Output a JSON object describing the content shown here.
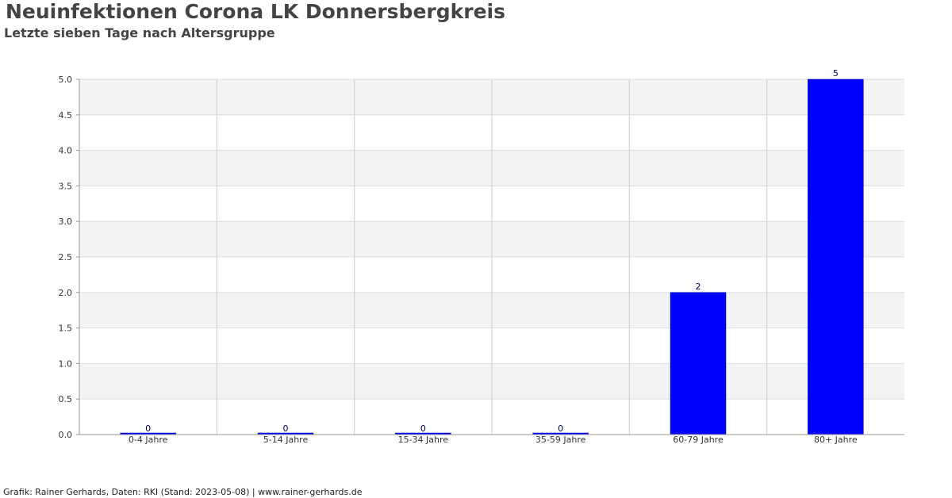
{
  "header": {
    "title": "Neuinfektionen Corona LK Donnersbergkreis",
    "subtitle": "Letzte sieben Tage nach Altersgruppe"
  },
  "footer": {
    "credit": "Grafik: Rainer Gerhards, Daten: RKI (Stand: 2023-05-08) | www.rainer-gerhards.de"
  },
  "colors": {
    "bar": "#0000ff",
    "band_shaded": "#f3f3f3",
    "grid": "#dddddd",
    "axis": "#999999",
    "data_label": "#000066"
  },
  "chart_data": {
    "type": "bar",
    "title": "Neuinfektionen Corona LK Donnersbergkreis",
    "subtitle": "Letzte sieben Tage nach Altersgruppe",
    "categories": [
      "0-4 Jahre",
      "5-14 Jahre",
      "15-34 Jahre",
      "35-59 Jahre",
      "60-79 Jahre",
      "80+ Jahre"
    ],
    "values": [
      0,
      0,
      0,
      0,
      2,
      5
    ],
    "data_labels": [
      "0",
      "0",
      "0",
      "0",
      "2",
      "5"
    ],
    "ylim": [
      0,
      5
    ],
    "yticks": [
      0.0,
      0.5,
      1.0,
      1.5,
      2.0,
      2.5,
      3.0,
      3.5,
      4.0,
      4.5,
      5.0
    ],
    "ytick_labels": [
      "0.0",
      "0.5",
      "1.0",
      "1.5",
      "2.0",
      "2.5",
      "3.0",
      "3.5",
      "4.0",
      "4.5",
      "5.0"
    ],
    "xlabel": "",
    "ylabel": "",
    "grid": true,
    "legend": "none"
  }
}
